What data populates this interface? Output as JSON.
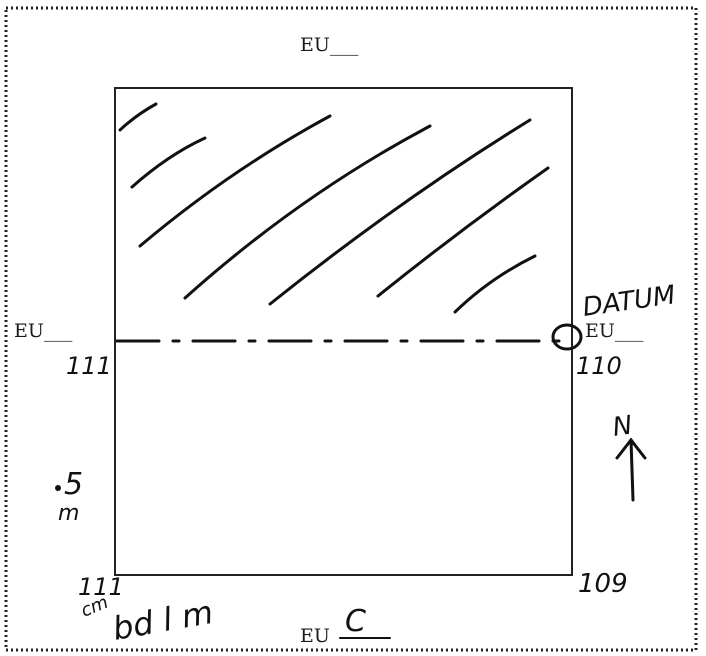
{
  "form": {
    "eu_prefix": "EU",
    "labels": {
      "top": "EU___",
      "left": "EU___",
      "right": "EU___",
      "bottom": "EU"
    }
  },
  "annotations": {
    "bottom_unit": "C",
    "datum": "DATUM",
    "elev_left_mid": "111",
    "elev_right_mid": "110",
    "elev_bottom_left": "111",
    "elev_bottom_right": "109",
    "unit_cm": "cm",
    "unit_bdlm": "bd l m",
    "scale_value": "5",
    "scale_unit": "m",
    "north": "N"
  },
  "colors": {
    "ink": "#111111",
    "print": "#1a1a1a",
    "frame": "#222222"
  }
}
